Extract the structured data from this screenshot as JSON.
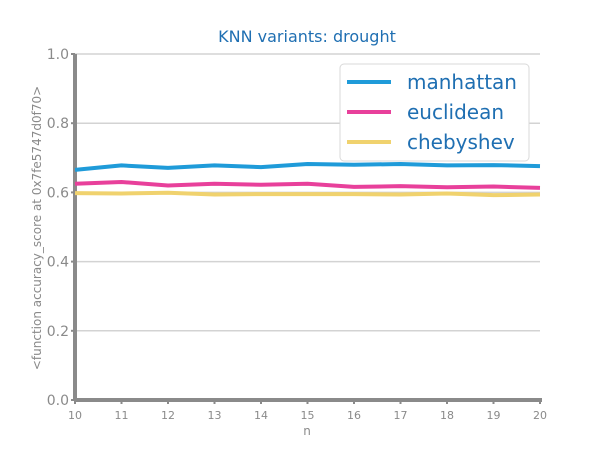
{
  "chart_data": {
    "type": "line",
    "title": "KNN variants: drought",
    "xlabel": "n",
    "ylabel": "<function accuracy_score at 0x7fe5747d0f70>",
    "x": [
      10,
      11,
      12,
      13,
      14,
      15,
      16,
      17,
      18,
      19,
      20
    ],
    "xlim": [
      10,
      20
    ],
    "ylim": [
      0.0,
      1.0
    ],
    "yticks": [
      "0.0",
      "0.2",
      "0.4",
      "0.6",
      "0.8",
      "1.0"
    ],
    "grid": "horizontal",
    "legend_position": "top-right",
    "series": [
      {
        "name": "manhattan",
        "color": "#1f9bd9",
        "values": [
          0.665,
          0.678,
          0.671,
          0.678,
          0.673,
          0.682,
          0.68,
          0.682,
          0.678,
          0.679,
          0.676
        ]
      },
      {
        "name": "euclidean",
        "color": "#e8409b",
        "values": [
          0.625,
          0.63,
          0.62,
          0.625,
          0.622,
          0.625,
          0.616,
          0.618,
          0.615,
          0.617,
          0.613
        ]
      },
      {
        "name": "chebyshev",
        "color": "#f0d26e",
        "values": [
          0.598,
          0.597,
          0.599,
          0.594,
          0.595,
          0.595,
          0.595,
          0.594,
          0.597,
          0.592,
          0.594
        ]
      }
    ]
  },
  "colors": {
    "title": "#1f6fb2",
    "legend_text": "#1f6fb2",
    "axis": "#8a8a8a",
    "grid": "#d3d3d3"
  }
}
